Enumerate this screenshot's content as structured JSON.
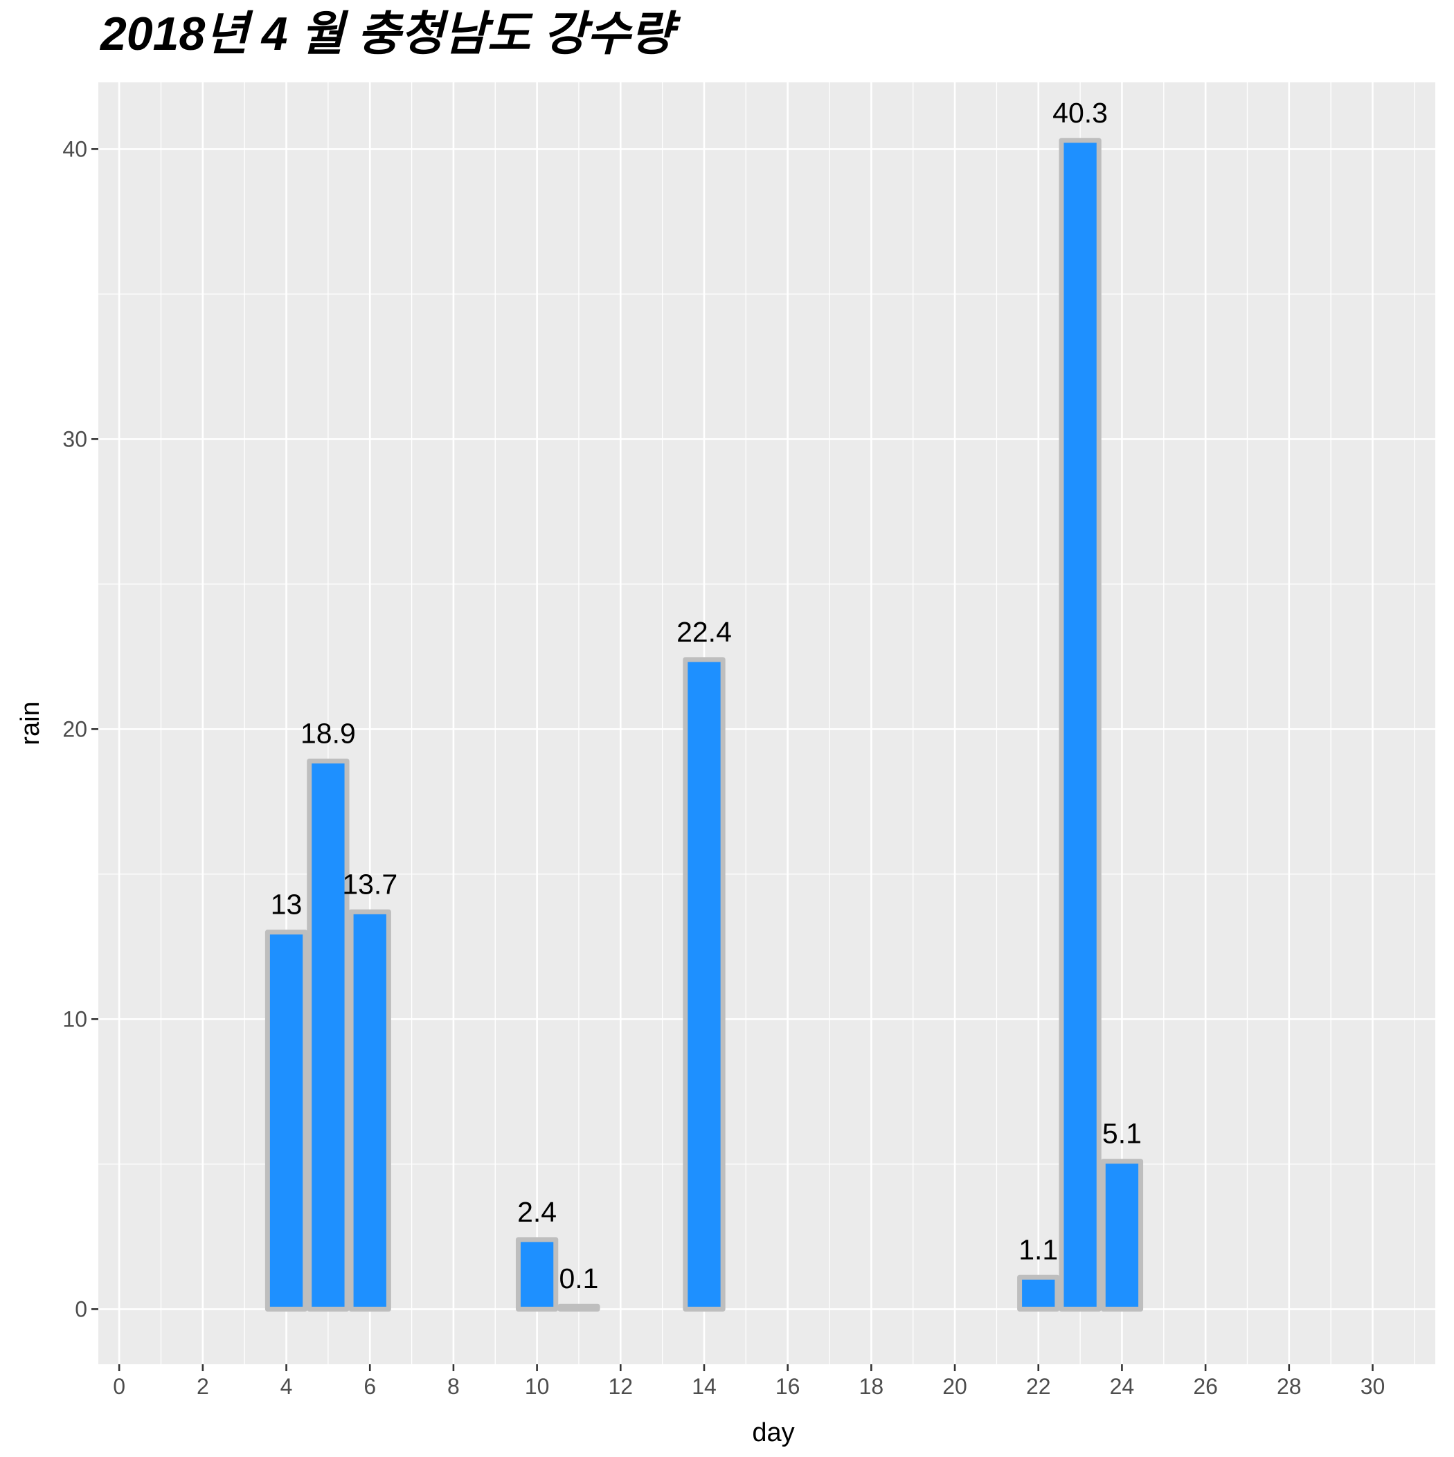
{
  "chart_data": {
    "type": "bar",
    "title": "2018년 4 월 충청남도 강수량",
    "xlabel": "day",
    "ylabel": "rain",
    "x": [
      4,
      5,
      6,
      10,
      11,
      14,
      22,
      23,
      24
    ],
    "values": [
      13,
      18.9,
      13.7,
      2.4,
      0.1,
      22.4,
      1.1,
      40.3,
      5.1
    ],
    "data_labels": [
      "13",
      "18.9",
      "13.7",
      "2.4",
      "0.1",
      "22.4",
      "1.1",
      "40.3",
      "5.1"
    ],
    "xticks": [
      0,
      2,
      4,
      6,
      8,
      10,
      12,
      14,
      16,
      18,
      20,
      22,
      24,
      26,
      28,
      30
    ],
    "yticks": [
      0,
      10,
      20,
      30,
      40
    ],
    "xlim": [
      -0.5,
      31.5
    ],
    "ylim": [
      -1.9,
      42.3
    ],
    "grid": true,
    "colors": {
      "bar_fill": "#1E90FF",
      "bar_outline": "#BEBEBE",
      "panel_background": "#EBEBEB",
      "grid": "#FFFFFF"
    }
  }
}
